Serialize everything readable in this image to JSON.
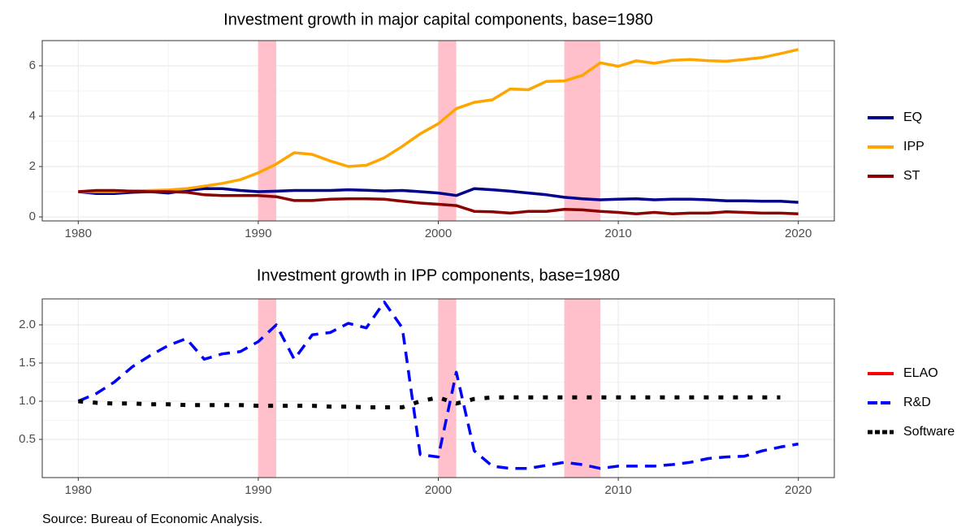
{
  "chart_data": [
    {
      "type": "line",
      "title": "Investment growth in major capital components, base=1980",
      "x": [
        1980,
        1981,
        1982,
        1983,
        1984,
        1985,
        1986,
        1987,
        1988,
        1989,
        1990,
        1991,
        1992,
        1993,
        1994,
        1995,
        1996,
        1997,
        1998,
        1999,
        2000,
        2001,
        2002,
        2003,
        2004,
        2005,
        2006,
        2007,
        2008,
        2009,
        2010,
        2011,
        2012,
        2013,
        2014,
        2015,
        2016,
        2017,
        2018,
        2019,
        2020
      ],
      "series": [
        {
          "name": "EQ",
          "color": "#00008b",
          "dash": "solid",
          "values": [
            1.0,
            0.93,
            0.93,
            0.98,
            1.0,
            0.95,
            1.05,
            1.12,
            1.12,
            1.05,
            1.0,
            1.02,
            1.05,
            1.05,
            1.05,
            1.08,
            1.06,
            1.03,
            1.05,
            1.0,
            0.95,
            0.85,
            1.12,
            1.08,
            1.02,
            0.95,
            0.88,
            0.78,
            0.72,
            0.68,
            0.7,
            0.72,
            0.68,
            0.7,
            0.7,
            0.68,
            0.64,
            0.64,
            0.62,
            0.62,
            0.58
          ]
        },
        {
          "name": "IPP",
          "color": "#ffa500",
          "dash": "solid",
          "values": [
            1.0,
            1.0,
            1.0,
            1.03,
            1.05,
            1.07,
            1.12,
            1.22,
            1.33,
            1.48,
            1.75,
            2.1,
            2.55,
            2.48,
            2.22,
            2.0,
            2.05,
            2.35,
            2.8,
            3.3,
            3.7,
            4.3,
            4.55,
            4.65,
            5.08,
            5.05,
            5.38,
            5.4,
            5.62,
            6.12,
            5.98,
            6.2,
            6.1,
            6.22,
            6.25,
            6.2,
            6.18,
            6.25,
            6.33,
            6.48,
            6.65
          ]
        },
        {
          "name": "ST",
          "color": "#8b0000",
          "dash": "solid",
          "values": [
            1.0,
            1.05,
            1.05,
            1.02,
            1.0,
            1.0,
            0.98,
            0.88,
            0.85,
            0.85,
            0.85,
            0.8,
            0.65,
            0.65,
            0.7,
            0.72,
            0.72,
            0.7,
            0.62,
            0.55,
            0.5,
            0.45,
            0.22,
            0.2,
            0.15,
            0.22,
            0.22,
            0.3,
            0.28,
            0.22,
            0.18,
            0.12,
            0.18,
            0.12,
            0.15,
            0.15,
            0.2,
            0.18,
            0.15,
            0.15,
            0.12
          ]
        }
      ],
      "recessions": [
        [
          1990,
          1991
        ],
        [
          2000,
          2001
        ],
        [
          2007,
          2009
        ]
      ],
      "recession_color": "#ffc0cb",
      "xlim": [
        1978,
        2022
      ],
      "xticks": [
        1980,
        1990,
        2000,
        2010,
        2020
      ],
      "ylim": [
        -0.16,
        7.0
      ],
      "yticks": [
        0,
        2,
        4,
        6
      ],
      "grid": true,
      "legend": "right"
    },
    {
      "type": "line",
      "title": "Investment growth in IPP components, base=1980",
      "x": [
        1980,
        1981,
        1982,
        1983,
        1984,
        1985,
        1986,
        1987,
        1988,
        1989,
        1990,
        1991,
        1992,
        1993,
        1994,
        1995,
        1996,
        1997,
        1998,
        1999,
        2000,
        2001,
        2002,
        2003,
        2004,
        2005,
        2006,
        2007,
        2008,
        2009,
        2010,
        2011,
        2012,
        2013,
        2014,
        2015,
        2016,
        2017,
        2018,
        2019,
        2020
      ],
      "series": [
        {
          "name": "ELAO",
          "color": "#ff0000",
          "dash": "solid",
          "values": [
            null,
            null,
            null,
            null,
            null,
            null,
            null,
            null,
            null,
            null,
            null,
            null,
            null,
            null,
            null,
            null,
            null,
            null,
            null,
            null,
            null,
            null,
            null,
            null,
            null,
            null,
            null,
            null,
            null,
            null,
            null,
            null,
            null,
            null,
            null,
            null,
            null,
            null,
            null,
            null,
            null
          ]
        },
        {
          "name": "R&D",
          "color": "#0000ff",
          "dash": "dashed",
          "values": [
            1.0,
            1.1,
            1.25,
            1.45,
            1.6,
            1.73,
            1.82,
            1.55,
            1.62,
            1.65,
            1.78,
            2.0,
            1.55,
            1.87,
            1.9,
            2.02,
            1.96,
            2.3,
            1.96,
            0.3,
            0.27,
            1.38,
            0.35,
            0.15,
            0.12,
            0.12,
            0.16,
            0.2,
            0.17,
            0.12,
            0.15,
            0.15,
            0.15,
            0.17,
            0.2,
            0.25,
            0.27,
            0.28,
            0.35,
            0.4,
            0.44
          ]
        },
        {
          "name": "Software",
          "color": "#000000",
          "dash": "dotted",
          "values": [
            1.0,
            0.98,
            0.97,
            0.97,
            0.96,
            0.96,
            0.95,
            0.95,
            0.95,
            0.95,
            0.94,
            0.94,
            0.94,
            0.94,
            0.93,
            0.93,
            0.92,
            0.92,
            0.92,
            1.0,
            1.05,
            0.97,
            1.03,
            1.05,
            1.05,
            1.05,
            1.05,
            1.05,
            1.05,
            1.05,
            1.05,
            1.05,
            1.05,
            1.05,
            1.05,
            1.05,
            1.05,
            1.05,
            1.05,
            1.05,
            null
          ]
        }
      ],
      "recessions": [
        [
          1990,
          1991
        ],
        [
          2000,
          2001
        ],
        [
          2007,
          2009
        ]
      ],
      "recession_color": "#ffc0cb",
      "xlim": [
        1978,
        2022
      ],
      "xticks": [
        1980,
        1990,
        2000,
        2010,
        2020
      ],
      "ylim": [
        0,
        2.34
      ],
      "yticks": [
        0.5,
        {
          "value": 1,
          "label": "1.0"
        },
        1.5,
        {
          "value": 2,
          "label": "2.0"
        }
      ],
      "grid": true,
      "legend": "right"
    }
  ],
  "source": "Source: Bureau of Economic Analysis."
}
